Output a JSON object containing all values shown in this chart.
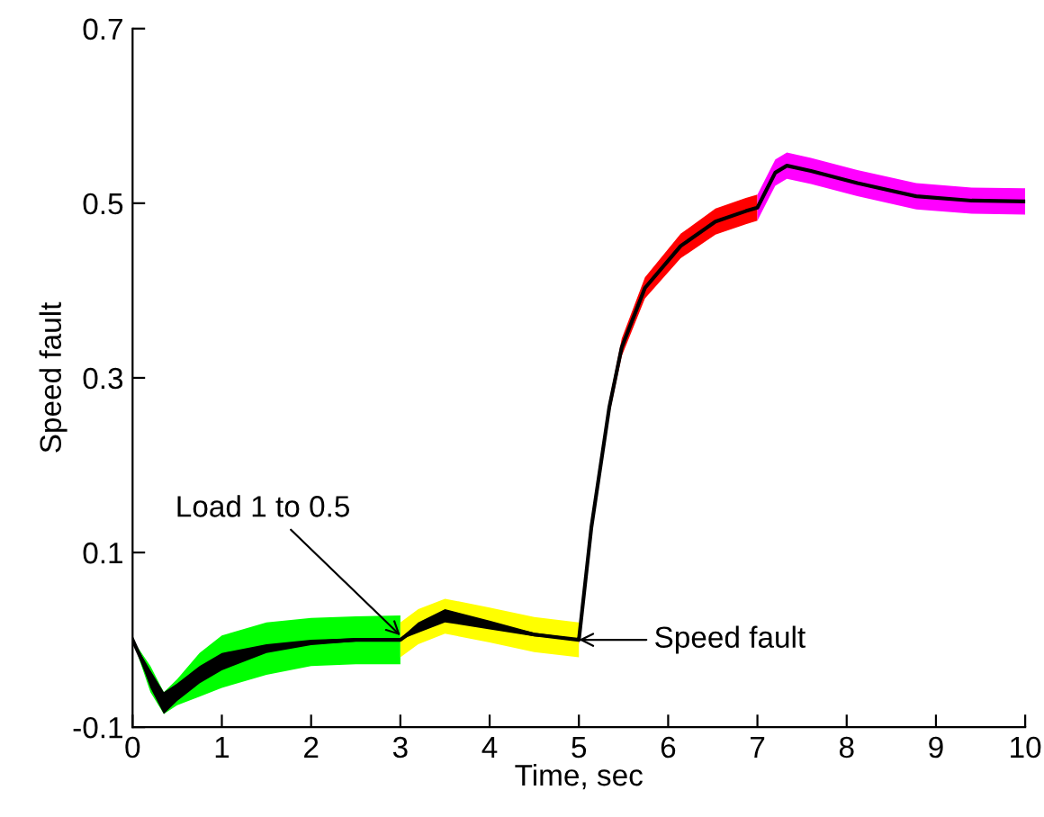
{
  "chart_data": {
    "type": "line",
    "xlabel": "Time, sec",
    "ylabel": "Speed fault",
    "xlim": [
      0,
      10
    ],
    "ylim": [
      -0.1,
      0.7
    ],
    "xticks": [
      0,
      1,
      2,
      3,
      4,
      5,
      6,
      7,
      8,
      9,
      10
    ],
    "yticks": [
      -0.1,
      0.1,
      0.3,
      0.5,
      0.7
    ],
    "grid": false,
    "legend": false,
    "marker": "none",
    "line_style": "solid",
    "series": [
      {
        "color": "#00ff00",
        "x": [
          0,
          0.2,
          0.35,
          0.5,
          0.75,
          1,
          1.5,
          2,
          2.5,
          3
        ],
        "values": [
          null,
          null,
          null,
          null,
          null,
          null,
          null,
          null,
          null,
          null
        ],
        "lower": [
          0,
          -0.06,
          -0.085,
          -0.075,
          -0.065,
          -0.055,
          -0.04,
          -0.03,
          -0.028,
          -0.028
        ],
        "upper": [
          0,
          -0.03,
          -0.06,
          -0.045,
          -0.015,
          0.005,
          0.02,
          0.025,
          0.027,
          0.028
        ]
      },
      {
        "color": "#ffff00",
        "x": [
          3,
          3.2,
          3.5,
          4,
          4.5,
          5
        ],
        "values": [
          null,
          null,
          null,
          null,
          null,
          null
        ],
        "lower": [
          -0.02,
          -0.005,
          0.007,
          -0.003,
          -0.014,
          -0.02
        ],
        "upper": [
          0.02,
          0.035,
          0.047,
          0.037,
          0.026,
          0.02
        ]
      },
      {
        "color": "#ff0000",
        "x": [
          5,
          5.14,
          5.34,
          5.48,
          5.74,
          6.14,
          6.53,
          6.87,
          7.0
        ],
        "values": [
          null,
          null,
          null,
          null,
          null,
          null,
          null,
          null,
          null
        ],
        "lower": [
          -0.005,
          0.123,
          0.258,
          0.325,
          0.391,
          0.437,
          0.464,
          0.476,
          0.48
        ],
        "upper": [
          0.005,
          0.135,
          0.274,
          0.345,
          0.415,
          0.465,
          0.494,
          0.506,
          0.51
        ]
      },
      {
        "color": "#ff00ff",
        "x": [
          7.0,
          7.1,
          7.2,
          7.33,
          7.6,
          8.12,
          8.78,
          9.4,
          10
        ],
        "values": [
          null,
          null,
          null,
          null,
          null,
          null,
          null,
          null,
          null
        ],
        "lower": [
          0.48,
          0.5,
          0.52,
          0.528,
          0.522,
          0.508,
          0.493,
          0.488,
          0.487
        ],
        "upper": [
          0.51,
          0.53,
          0.55,
          0.558,
          0.552,
          0.538,
          0.523,
          0.518,
          0.517
        ]
      },
      {
        "color": "#000000",
        "x": [
          0,
          0.2,
          0.35,
          0.5,
          0.75,
          1,
          1.5,
          2,
          2.5,
          3,
          3.2,
          3.5,
          4,
          4.5,
          5,
          5.14,
          5.34,
          5.48,
          5.74,
          6.14,
          6.53,
          6.87,
          7.0,
          7.1,
          7.2,
          7.33,
          7.6,
          8.12,
          8.78,
          9.4,
          10
        ],
        "values": [
          0,
          -0.045,
          -0.07,
          -0.06,
          -0.04,
          -0.025,
          -0.01,
          -0.003,
          0,
          0,
          0.015,
          0.027,
          0.017,
          0.006,
          0,
          0.129,
          0.266,
          0.335,
          0.403,
          0.451,
          0.479,
          0.491,
          0.495,
          0.515,
          0.535,
          0.543,
          0.537,
          0.523,
          0.508,
          0.503,
          0.502
        ],
        "lower": [
          0,
          -0.055,
          -0.085,
          -0.07,
          -0.05,
          -0.035,
          -0.015,
          -0.006,
          -0.002,
          0,
          0.008,
          0.02,
          0.012,
          0.004,
          0,
          null,
          null,
          null,
          null,
          null,
          null,
          null,
          null,
          null,
          null,
          null,
          null,
          null,
          null,
          null,
          null
        ],
        "upper": [
          0,
          -0.035,
          -0.06,
          -0.05,
          -0.03,
          -0.015,
          -0.005,
          0,
          0.002,
          0.002,
          0.02,
          0.035,
          0.022,
          0.008,
          0.001,
          null,
          null,
          null,
          null,
          null,
          null,
          null,
          null,
          null,
          null,
          null,
          null,
          null,
          null,
          null,
          null
        ]
      }
    ],
    "annotations": [
      {
        "text": "Load 1 to 0.5",
        "x": 3,
        "y": 0.005
      },
      {
        "text": "Speed fault",
        "x": 5,
        "y": 0.0
      }
    ]
  }
}
